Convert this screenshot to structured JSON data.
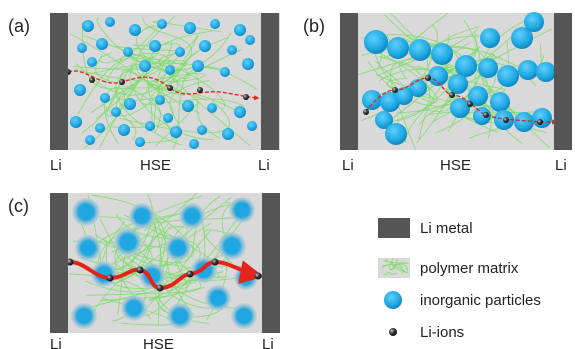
{
  "panels": [
    {
      "id": "a",
      "tag": "(a)",
      "left_label": "Li",
      "center_label": "HSE",
      "right_label": "Li"
    },
    {
      "id": "b",
      "tag": "(b)",
      "left_label": "Li",
      "center_label": "HSE",
      "right_label": "Li"
    },
    {
      "id": "c",
      "tag": "(c)",
      "left_label": "Li",
      "center_label": "HSE",
      "right_label": "Li"
    }
  ],
  "legend": {
    "items": [
      {
        "label": "Li metal"
      },
      {
        "label": "polymer matrix"
      },
      {
        "label": "inorganic particles"
      },
      {
        "label": "Li-ions"
      }
    ]
  },
  "colors": {
    "li_metal": "#555555",
    "electrolyte_bg": "#d9d9d9",
    "polymer": "#7ddc6a",
    "particle": "#1ea7e1",
    "particle_halo": "#9fc9dd",
    "ion": "#333333",
    "path": "#e4231d"
  }
}
